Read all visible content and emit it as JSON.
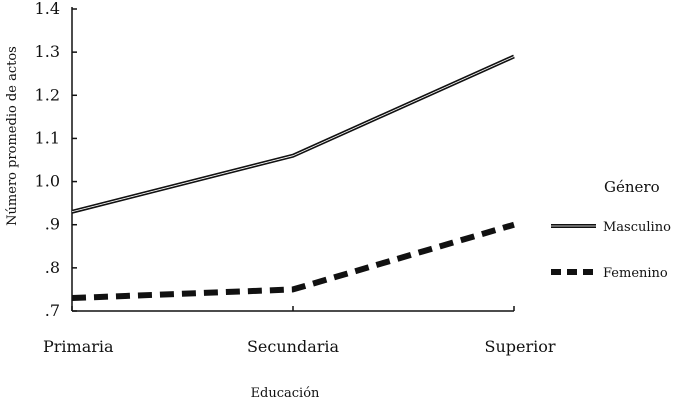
{
  "chart_data": {
    "type": "line",
    "title": "",
    "xlabel": "Educación",
    "ylabel": "Número promedio de  actos",
    "categories": [
      "Primaria",
      "Secundaria",
      "Superior"
    ],
    "ylim": [
      0.7,
      1.4
    ],
    "yticks": [
      ".7",
      ".8",
      ".9",
      "1.0",
      "1.1",
      "1.2",
      "1.3",
      "1.4"
    ],
    "yticks_values": [
      0.7,
      0.8,
      0.9,
      1.0,
      1.1,
      1.2,
      1.3,
      1.4
    ],
    "grid": false,
    "legend": {
      "title": "Género",
      "placement": "right"
    },
    "series": [
      {
        "name": "Masculino",
        "values": [
          0.93,
          1.06,
          1.29
        ],
        "color": "#111111",
        "style": "solid"
      },
      {
        "name": "Femenino",
        "values": [
          0.73,
          0.75,
          0.9
        ],
        "color": "#111111",
        "style": "dashed"
      }
    ]
  }
}
